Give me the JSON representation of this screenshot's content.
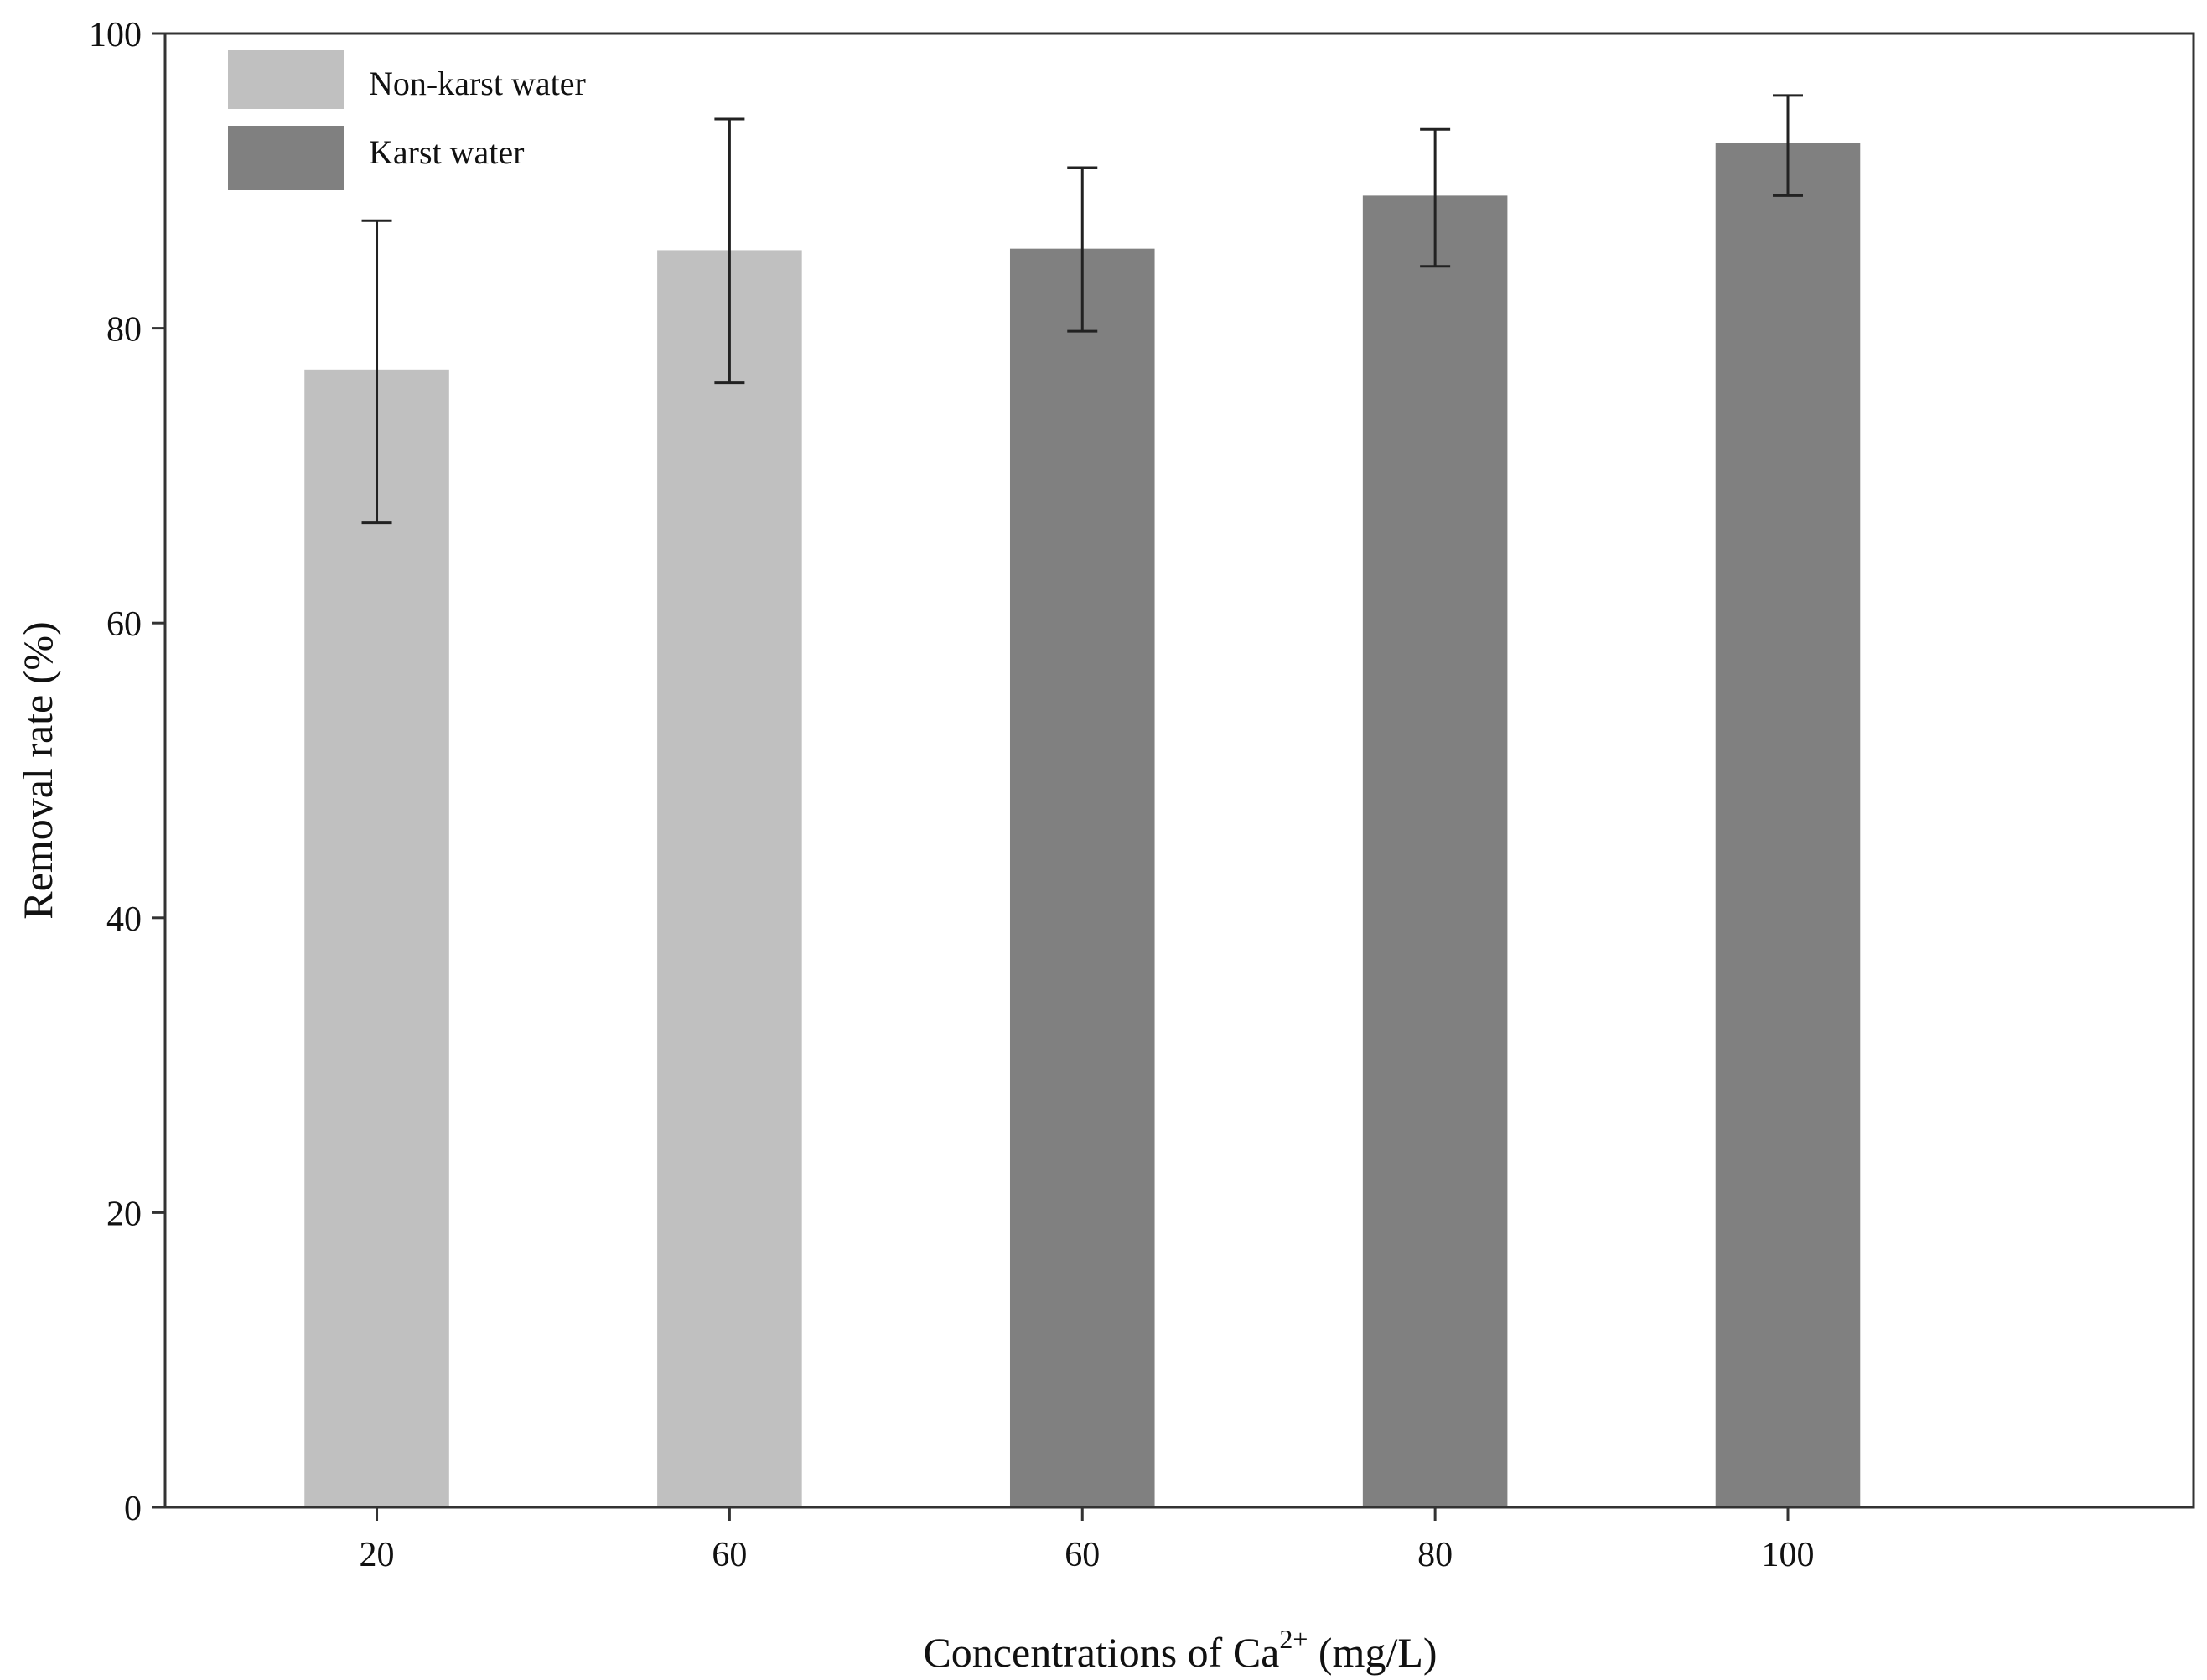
{
  "chart_data": {
    "type": "bar",
    "categories": [
      "20",
      "60",
      "60",
      "80",
      "100"
    ],
    "series": [
      {
        "name": "Non-karst water",
        "color": "#c0c0c0",
        "values": [
          77.2,
          85.3,
          null,
          null,
          null
        ],
        "errors_low": [
          66.8,
          76.3,
          null,
          null,
          null
        ],
        "errors_high": [
          87.3,
          94.2,
          null,
          null,
          null
        ]
      },
      {
        "name": "Karst water",
        "color": "#808080",
        "values": [
          null,
          null,
          85.4,
          89.0,
          92.6
        ],
        "errors_low": [
          null,
          null,
          79.8,
          84.2,
          89.0
        ],
        "errors_high": [
          null,
          null,
          90.9,
          93.5,
          95.8
        ]
      }
    ],
    "xlabel_prefix": "Concentrations of Ca",
    "xlabel_sup": "2+",
    "xlabel_suffix": " (mg/L)",
    "ylabel": "Removal rate (%)",
    "ylim": [
      0,
      100
    ],
    "yticks": [
      0,
      20,
      40,
      60,
      80,
      100
    ],
    "legend_position": "top-left"
  }
}
